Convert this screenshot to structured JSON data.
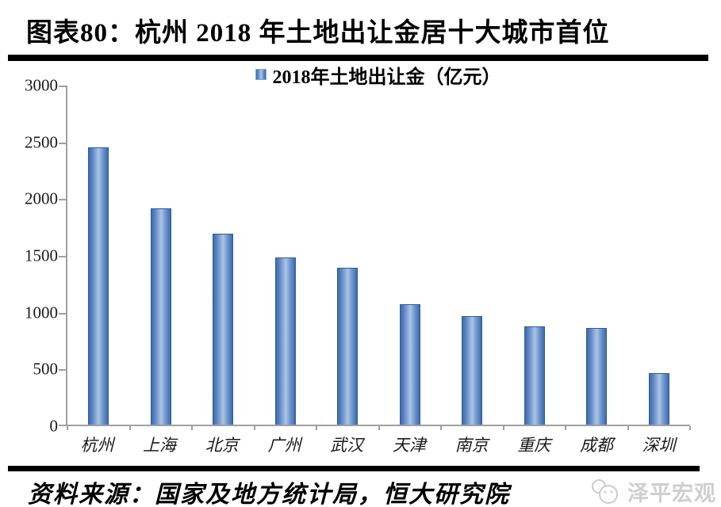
{
  "header": {
    "title": "图表80：杭州 2018 年土地出让金居十大城市首位"
  },
  "chart_data": {
    "type": "bar",
    "title": "图表80：杭州 2018 年土地出让金居十大城市首位",
    "legend": "2018年土地出让金（亿元）",
    "legend_position": "top-center",
    "categories": [
      "杭州",
      "上海",
      "北京",
      "广州",
      "武汉",
      "天津",
      "南京",
      "重庆",
      "成都",
      "深圳"
    ],
    "values": [
      2443,
      1906,
      1683,
      1470,
      1381,
      1058,
      958,
      866,
      848,
      450
    ],
    "unit": "亿元",
    "ylabel": "",
    "xlabel": "",
    "ylim": [
      0,
      3000
    ],
    "yticks": [
      0,
      500,
      1000,
      1500,
      2000,
      2500,
      3000
    ],
    "grid": false,
    "bar_color_dark": "#3e6cae",
    "bar_color_light": "#a9c4e6",
    "bar_border_color": "#2e5b9c",
    "axis_color": "#a0a0a0"
  },
  "footer": {
    "source": "资料来源：国家及地方统计局，恒大研究院",
    "watermark": "泽平宏观"
  }
}
